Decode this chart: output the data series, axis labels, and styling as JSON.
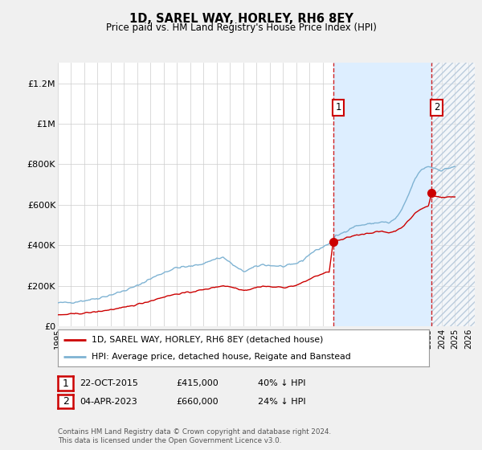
{
  "title": "1D, SAREL WAY, HORLEY, RH6 8EY",
  "subtitle": "Price paid vs. HM Land Registry's House Price Index (HPI)",
  "footer": "Contains HM Land Registry data © Crown copyright and database right 2024.\nThis data is licensed under the Open Government Licence v3.0.",
  "legend_house": "1D, SAREL WAY, HORLEY, RH6 8EY (detached house)",
  "legend_hpi": "HPI: Average price, detached house, Reigate and Banstead",
  "annotation1_label": "1",
  "annotation1_text": "22-OCT-2015",
  "annotation1_price": "£415,000",
  "annotation1_hpi": "40% ↓ HPI",
  "annotation1_year": 2015.8,
  "annotation1_value": 415000,
  "annotation2_label": "2",
  "annotation2_text": "04-APR-2023",
  "annotation2_price": "£660,000",
  "annotation2_hpi": "24% ↓ HPI",
  "annotation2_year": 2023.25,
  "annotation2_value": 660000,
  "house_color": "#cc0000",
  "hpi_color": "#7fb3d3",
  "vline_color": "#cc0000",
  "background_color": "#f0f0f0",
  "plot_bg_color": "#ffffff",
  "shade_color": "#ddeeff",
  "ylim": [
    0,
    1300000
  ],
  "yticks": [
    0,
    200000,
    400000,
    600000,
    800000,
    1000000,
    1200000
  ],
  "ytick_labels": [
    "£0",
    "£200K",
    "£400K",
    "£600K",
    "£800K",
    "£1M",
    "£1.2M"
  ],
  "xlim_start": 1995,
  "xlim_end": 2026.5
}
